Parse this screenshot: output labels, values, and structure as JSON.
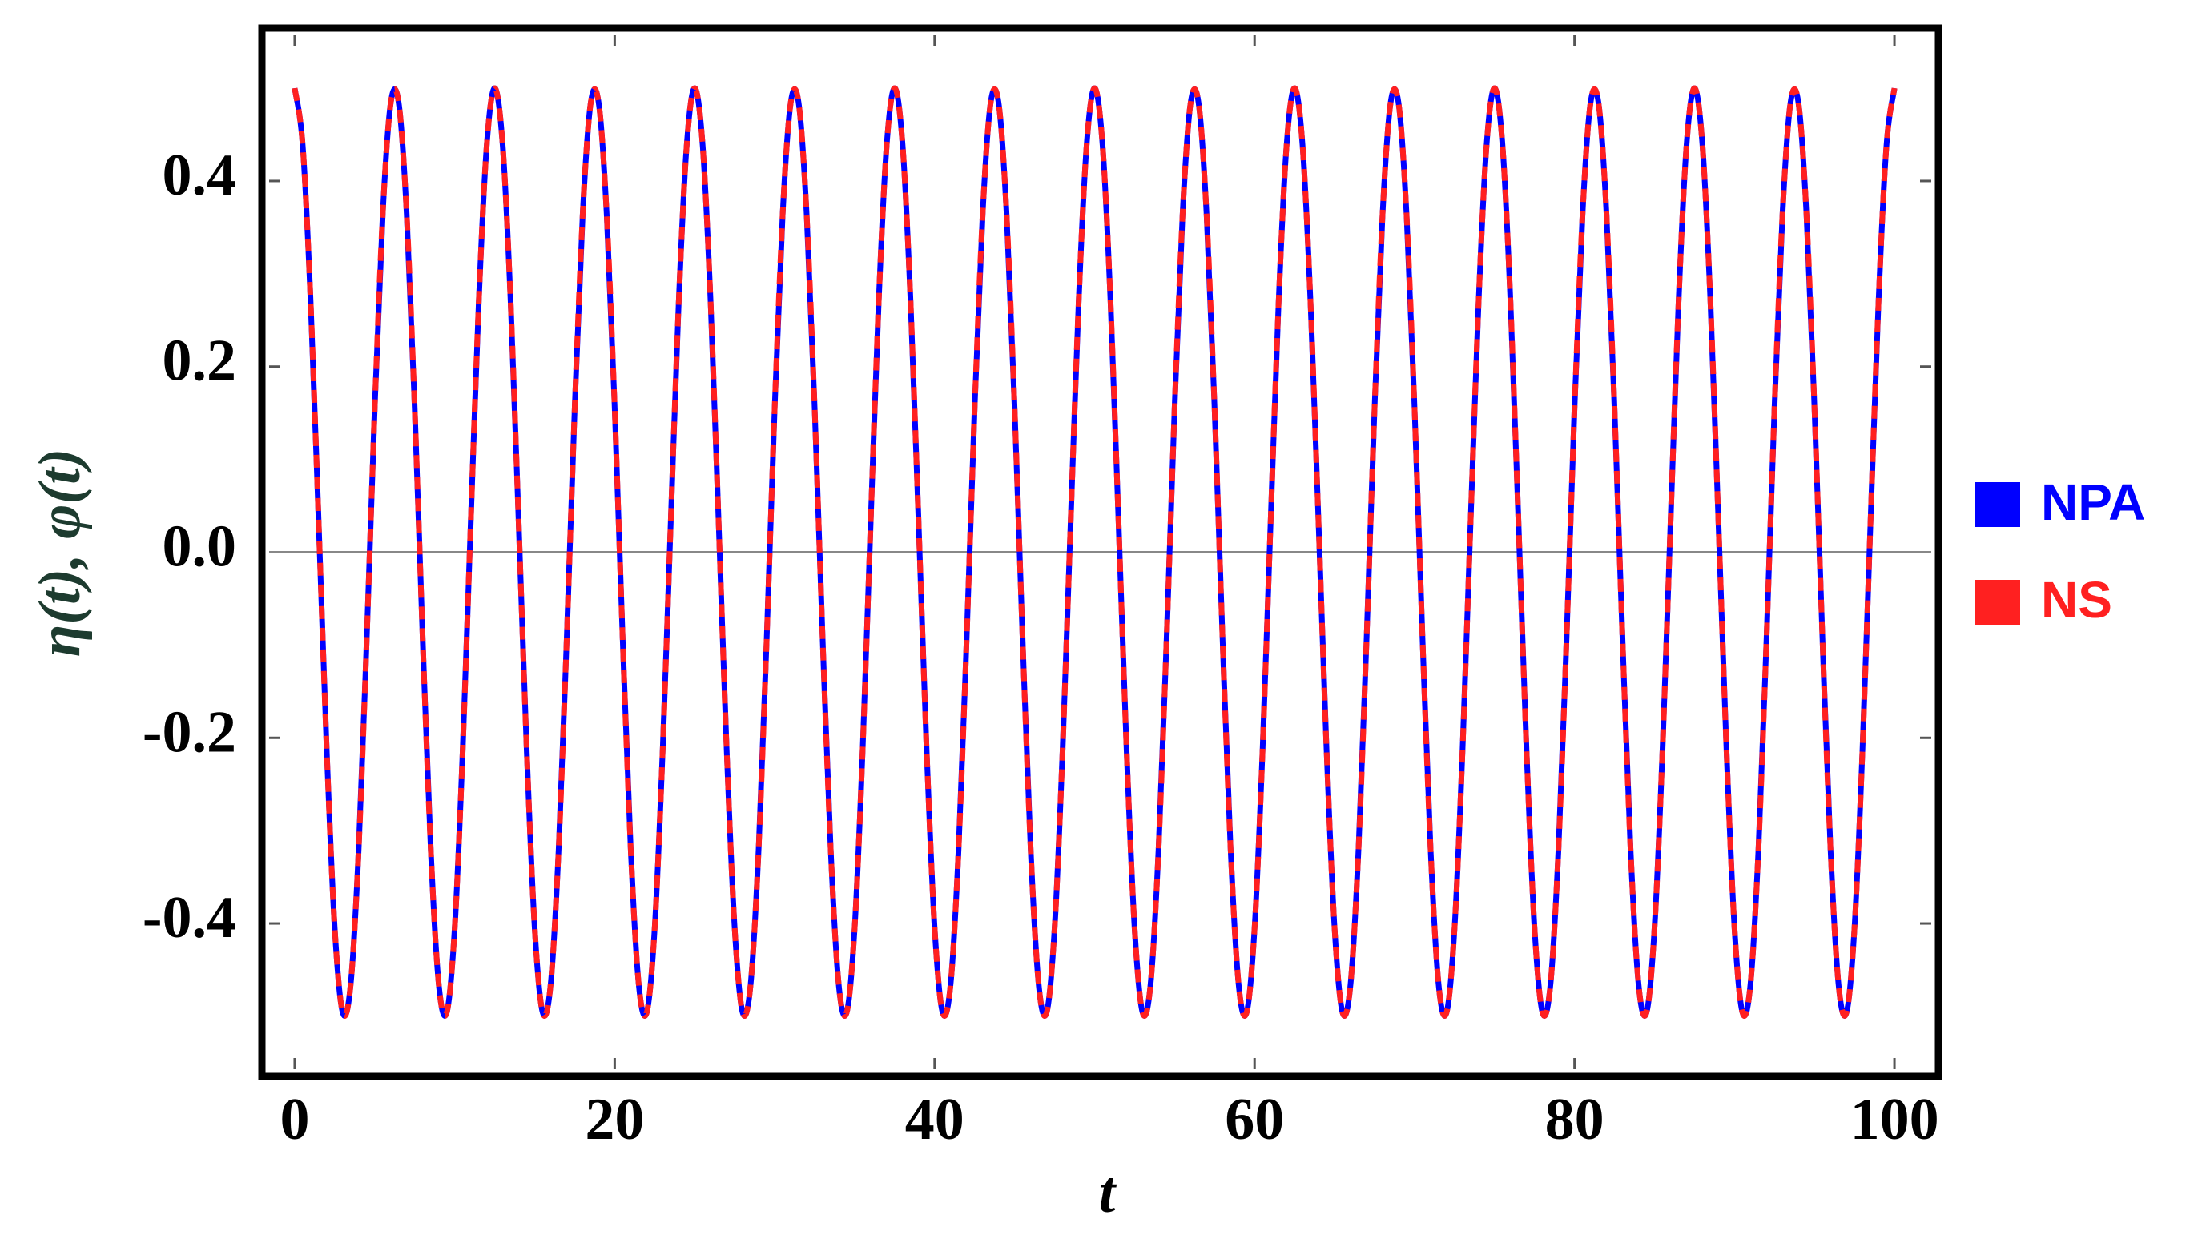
{
  "chart_data": {
    "type": "line",
    "xlabel": "t",
    "ylabel": "η(t), φ(t)",
    "x": [
      0,
      0.5,
      1,
      1.5,
      2,
      2.5,
      3,
      3.5,
      4,
      4.5,
      5,
      5.5,
      6,
      6.5,
      7,
      7.5,
      8,
      8.5,
      9,
      9.5,
      10,
      10.5,
      11,
      11.5,
      12,
      12.5,
      13,
      13.5,
      14,
      14.5,
      15,
      15.5,
      16,
      16.5,
      17,
      17.5,
      18,
      18.5,
      19,
      19.5,
      20,
      20.5,
      21,
      21.5,
      22,
      22.5,
      23,
      23.5,
      24,
      24.5,
      25,
      25.5,
      26,
      26.5,
      27,
      27.5,
      28,
      28.5,
      29,
      29.5,
      30,
      30.5,
      31,
      31.5,
      32,
      32.5,
      33,
      33.5,
      34,
      34.5,
      35,
      35.5,
      36,
      36.5,
      37,
      37.5,
      38,
      38.5,
      39,
      39.5,
      40,
      40.5,
      41,
      41.5,
      42,
      42.5,
      43,
      43.5,
      44,
      44.5,
      45,
      45.5,
      46,
      46.5,
      47,
      47.5,
      48,
      48.5,
      49,
      49.5,
      50,
      50.5,
      51,
      51.5,
      52,
      52.5,
      53,
      53.5,
      54,
      54.5,
      55,
      55.5,
      56,
      56.5,
      57,
      57.5,
      58,
      58.5,
      59,
      59.5,
      60,
      60.5,
      61,
      61.5,
      62,
      62.5,
      63,
      63.5,
      64,
      64.5,
      65,
      65.5,
      66,
      66.5,
      67,
      67.5,
      68,
      68.5,
      69,
      69.5,
      70,
      70.5,
      71,
      71.5,
      72,
      72.5,
      73,
      73.5,
      74,
      74.5,
      75,
      75.5,
      76,
      76.5,
      77,
      77.5,
      78,
      78.5,
      79,
      79.5,
      80,
      80.5,
      81,
      81.5,
      82,
      82.5,
      83,
      83.5,
      84,
      84.5,
      85,
      85.5,
      86,
      86.5,
      87,
      87.5,
      88,
      88.5,
      89,
      89.5,
      90,
      90.5,
      91,
      91.5,
      92,
      92.5,
      93,
      93.5,
      94,
      94.5,
      95,
      95.5,
      96,
      96.5,
      97,
      97.5,
      98,
      98.5,
      99,
      99.5,
      100
    ],
    "series": [
      {
        "name": "NPA",
        "color": "#0000ff",
        "dashed": false,
        "values": [
          0.5,
          0.438,
          0.268,
          0.031,
          -0.213,
          -0.405,
          -0.496,
          -0.465,
          -0.319,
          -0.094,
          0.155,
          0.364,
          0.484,
          0.484,
          0.364,
          0.155,
          -0.094,
          -0.319,
          -0.465,
          -0.496,
          -0.405,
          -0.213,
          0.031,
          0.268,
          0.438,
          0.5,
          0.438,
          0.268,
          0.031,
          -0.213,
          -0.405,
          -0.496,
          -0.465,
          -0.319,
          -0.094,
          0.155,
          0.364,
          0.484,
          0.484,
          0.364,
          0.155,
          -0.094,
          -0.319,
          -0.465,
          -0.496,
          -0.405,
          -0.213,
          0.031,
          0.268,
          0.438,
          0.5,
          0.438,
          0.268,
          0.031,
          -0.213,
          -0.405,
          -0.496,
          -0.465,
          -0.319,
          -0.094,
          0.155,
          0.364,
          0.484,
          0.484,
          0.364,
          0.155,
          -0.094,
          -0.319,
          -0.465,
          -0.496,
          -0.405,
          -0.213,
          0.031,
          0.268,
          0.438,
          0.5,
          0.438,
          0.268,
          0.031,
          -0.213,
          -0.405,
          -0.496,
          -0.465,
          -0.319,
          -0.094,
          0.155,
          0.364,
          0.484,
          0.484,
          0.364,
          0.155,
          -0.094,
          -0.319,
          -0.465,
          -0.496,
          -0.405,
          -0.213,
          0.031,
          0.268,
          0.438,
          0.5,
          0.438,
          0.268,
          0.031,
          -0.213,
          -0.405,
          -0.496,
          -0.465,
          -0.319,
          -0.094,
          0.155,
          0.364,
          0.484,
          0.484,
          0.364,
          0.155,
          -0.094,
          -0.319,
          -0.465,
          -0.496,
          -0.405,
          -0.213,
          0.031,
          0.268,
          0.438,
          0.5,
          0.438,
          0.268,
          0.031,
          -0.213,
          -0.405,
          -0.496,
          -0.465,
          -0.319,
          -0.094,
          0.155,
          0.364,
          0.484,
          0.484,
          0.364,
          0.155,
          -0.094,
          -0.319,
          -0.465,
          -0.496,
          -0.405,
          -0.213,
          0.031,
          0.268,
          0.438,
          0.5,
          0.438,
          0.268,
          0.031,
          -0.213,
          -0.405,
          -0.496,
          -0.465,
          -0.319,
          -0.094,
          0.155,
          0.364,
          0.484,
          0.484,
          0.364,
          0.155,
          -0.094,
          -0.319,
          -0.465,
          -0.496,
          -0.405,
          -0.213,
          0.031,
          0.268,
          0.438,
          0.5,
          0.438,
          0.268,
          0.031,
          -0.213,
          -0.405,
          -0.496,
          -0.465,
          -0.319,
          -0.094,
          0.155,
          0.364,
          0.484,
          0.484,
          0.364,
          0.155,
          -0.094,
          -0.319,
          -0.465,
          -0.496,
          -0.405,
          -0.213,
          0.031,
          0.268,
          0.438,
          0.5
        ]
      },
      {
        "name": "NS",
        "color": "#ff2020",
        "dashed": true,
        "values": [
          0.5,
          0.438,
          0.268,
          0.031,
          -0.213,
          -0.405,
          -0.496,
          -0.465,
          -0.319,
          -0.094,
          0.155,
          0.364,
          0.484,
          0.484,
          0.364,
          0.155,
          -0.094,
          -0.319,
          -0.465,
          -0.496,
          -0.405,
          -0.213,
          0.031,
          0.268,
          0.438,
          0.5,
          0.438,
          0.268,
          0.031,
          -0.213,
          -0.405,
          -0.496,
          -0.465,
          -0.319,
          -0.094,
          0.155,
          0.364,
          0.484,
          0.484,
          0.364,
          0.155,
          -0.094,
          -0.319,
          -0.465,
          -0.496,
          -0.405,
          -0.213,
          0.031,
          0.268,
          0.438,
          0.5,
          0.438,
          0.268,
          0.031,
          -0.213,
          -0.405,
          -0.496,
          -0.465,
          -0.319,
          -0.094,
          0.155,
          0.364,
          0.484,
          0.484,
          0.364,
          0.155,
          -0.094,
          -0.319,
          -0.465,
          -0.496,
          -0.405,
          -0.213,
          0.031,
          0.268,
          0.438,
          0.5,
          0.438,
          0.268,
          0.031,
          -0.213,
          -0.405,
          -0.496,
          -0.465,
          -0.319,
          -0.094,
          0.155,
          0.364,
          0.484,
          0.484,
          0.364,
          0.155,
          -0.094,
          -0.319,
          -0.465,
          -0.496,
          -0.405,
          -0.213,
          0.031,
          0.268,
          0.438,
          0.5,
          0.438,
          0.268,
          0.031,
          -0.213,
          -0.405,
          -0.496,
          -0.465,
          -0.319,
          -0.094,
          0.155,
          0.364,
          0.484,
          0.484,
          0.364,
          0.155,
          -0.094,
          -0.319,
          -0.465,
          -0.496,
          -0.405,
          -0.213,
          0.031,
          0.268,
          0.438,
          0.5,
          0.438,
          0.268,
          0.031,
          -0.213,
          -0.405,
          -0.496,
          -0.465,
          -0.319,
          -0.094,
          0.155,
          0.364,
          0.484,
          0.484,
          0.364,
          0.155,
          -0.094,
          -0.319,
          -0.465,
          -0.496,
          -0.405,
          -0.213,
          0.031,
          0.268,
          0.438,
          0.5,
          0.438,
          0.268,
          0.031,
          -0.213,
          -0.405,
          -0.496,
          -0.465,
          -0.319,
          -0.094,
          0.155,
          0.364,
          0.484,
          0.484,
          0.364,
          0.155,
          -0.094,
          -0.319,
          -0.465,
          -0.496,
          -0.405,
          -0.213,
          0.031,
          0.268,
          0.438,
          0.5,
          0.438,
          0.268,
          0.031,
          -0.213,
          -0.405,
          -0.496,
          -0.465,
          -0.319,
          -0.094,
          0.155,
          0.364,
          0.484,
          0.484,
          0.364,
          0.155,
          -0.094,
          -0.319,
          -0.465,
          -0.496,
          -0.405,
          -0.213,
          0.031,
          0.268,
          0.438,
          0.5
        ]
      }
    ],
    "xlim": [
      -1.6,
      102.3
    ],
    "ylim": [
      -0.557,
      0.557
    ],
    "xticks": [
      0,
      20,
      40,
      60,
      80,
      100
    ],
    "yticks": [
      -0.4,
      -0.2,
      {
        "value": 0,
        "label": "0.0"
      },
      0.2,
      0.4
    ],
    "zero_line": true,
    "legend": "right"
  }
}
